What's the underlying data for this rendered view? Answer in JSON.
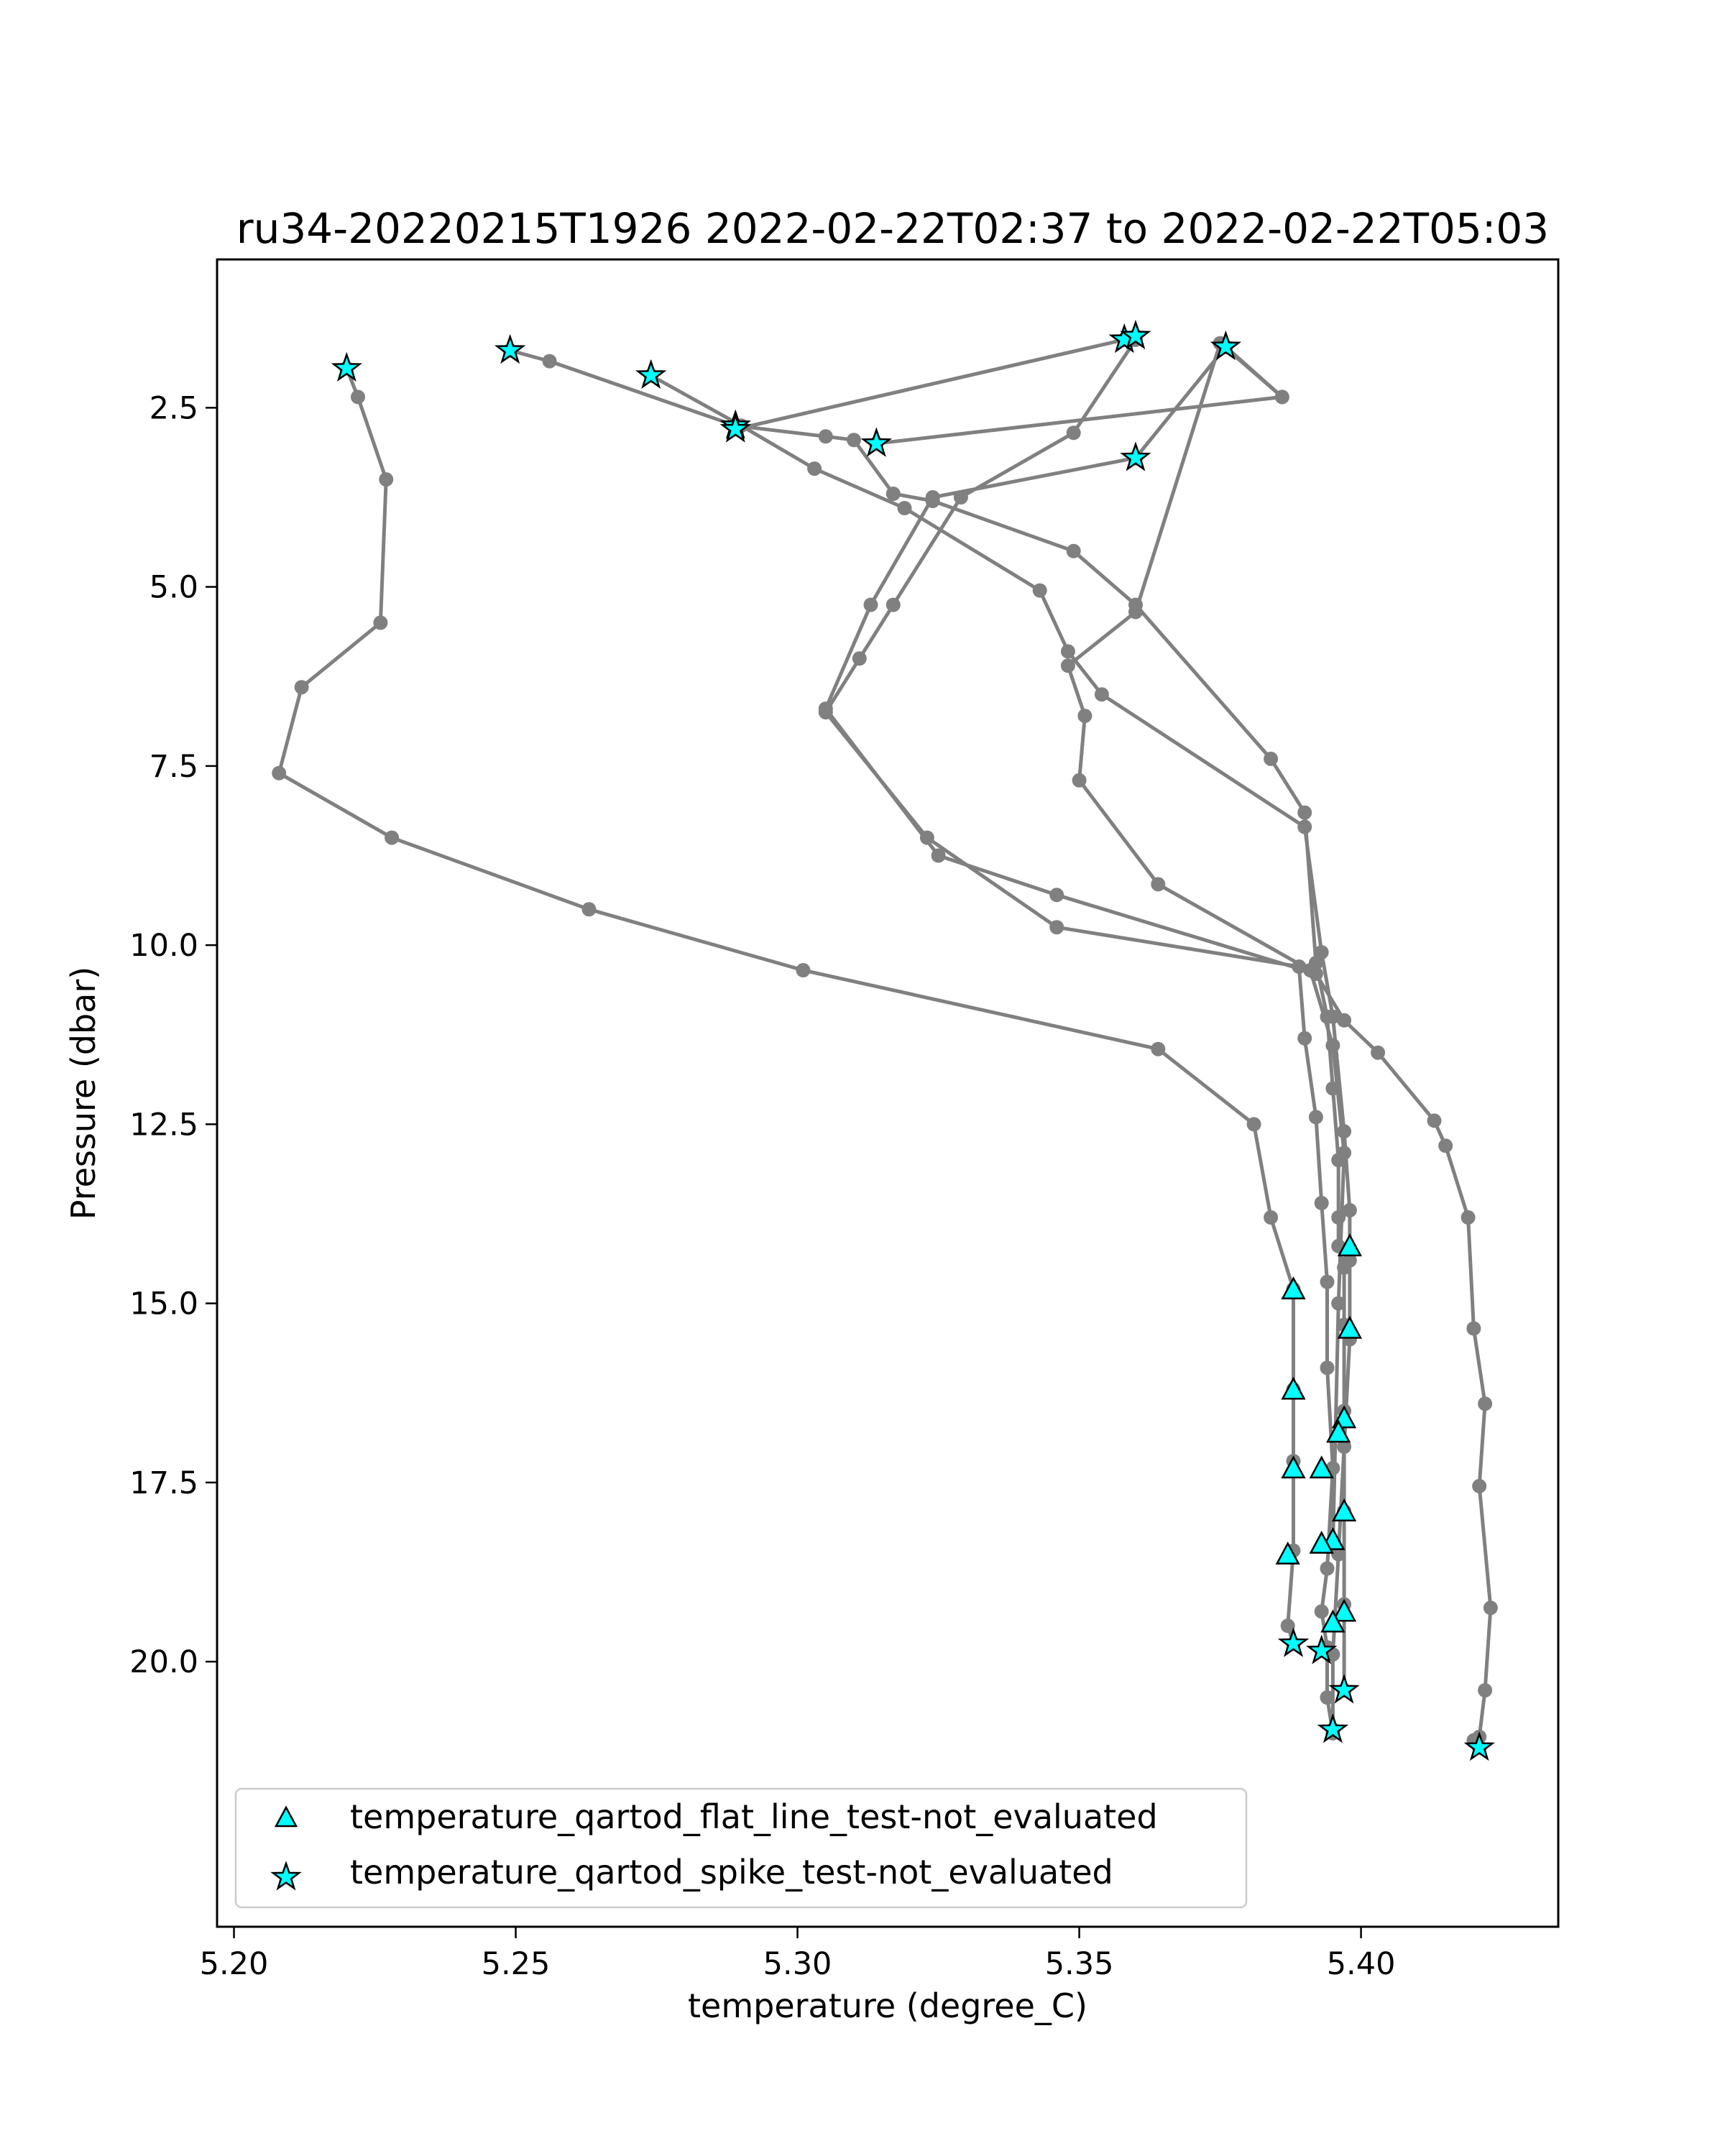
{
  "chart_data": {
    "type": "scatter",
    "title": "ru34-20220215T1926 2022-02-22T02:37 to 2022-02-22T05:03",
    "xlabel": "temperature (degree_C)",
    "ylabel": "Pressure (dbar)",
    "xlim": [
      5.197,
      5.435
    ],
    "ylim": [
      23.7,
      0.43
    ],
    "y_inverted": true,
    "grid": false,
    "xticks": [
      "5.20",
      "5.25",
      "5.30",
      "5.35",
      "5.40"
    ],
    "yticks": [
      "2.5",
      "5.0",
      "7.5",
      "10.0",
      "12.5",
      "15.0",
      "17.5",
      "20.0"
    ],
    "profile_color": "#808080",
    "marker_color": "#00ffff",
    "legend_position": "lower left",
    "series": [
      {
        "x": [
          5.22,
          5.222,
          5.227,
          5.226,
          5.212,
          5.208,
          5.228,
          5.263,
          5.301,
          5.364,
          5.381,
          5.384,
          5.388,
          5.388,
          5.388,
          5.388,
          5.387,
          5.388
        ],
        "y": [
          1.95,
          2.35,
          3.5,
          5.5,
          6.4,
          7.6,
          8.5,
          9.5,
          10.35,
          11.45,
          12.5,
          13.8,
          14.8,
          16.2,
          17.2,
          18.45,
          19.5,
          19.75
        ]
      },
      {
        "x": [
          5.249,
          5.256,
          5.289,
          5.305,
          5.31,
          5.317,
          5.324,
          5.349,
          5.36,
          5.384,
          5.39,
          5.392,
          5.394,
          5.395,
          5.396,
          5.396,
          5.396,
          5.397,
          5.397,
          5.397,
          5.397,
          5.397,
          5.397
        ],
        "y": [
          1.7,
          1.85,
          2.75,
          2.9,
          2.95,
          3.7,
          3.8,
          4.5,
          5.25,
          7.4,
          8.15,
          10.25,
          11.0,
          12.0,
          13.0,
          13.8,
          14.2,
          14.5,
          15.3,
          16.5,
          17.9,
          19.2,
          20.4
        ]
      },
      {
        "x": [
          5.274,
          5.29,
          5.303,
          5.319,
          5.343,
          5.348,
          5.354,
          5.39,
          5.393,
          5.395,
          5.397,
          5.398,
          5.398,
          5.398,
          5.397,
          5.396,
          5.395,
          5.395
        ],
        "y": [
          2.05,
          2.75,
          3.35,
          3.9,
          5.05,
          5.9,
          6.5,
          8.35,
          10.1,
          11.0,
          12.6,
          13.7,
          14.4,
          15.5,
          17.0,
          18.5,
          19.9,
          20.95
        ]
      },
      {
        "x": [
          5.289,
          5.358,
          5.358,
          5.36,
          5.36
        ],
        "y": [
          2.8,
          1.55,
          1.55,
          1.5,
          1.5
        ]
      },
      {
        "x": [
          5.314,
          5.386,
          5.376,
          5.36
        ],
        "y": [
          3.0,
          2.35,
          1.65,
          3.2
        ]
      },
      {
        "x": [
          5.36,
          5.349,
          5.329,
          5.317,
          5.311,
          5.305,
          5.323,
          5.346,
          5.389,
          5.39,
          5.392,
          5.393,
          5.394,
          5.394,
          5.395,
          5.394,
          5.393,
          5.394,
          5.394,
          5.395
        ],
        "y": [
          1.55,
          2.85,
          3.75,
          5.25,
          6.0,
          6.75,
          8.5,
          9.75,
          10.3,
          11.3,
          12.4,
          13.6,
          14.7,
          15.9,
          17.3,
          18.7,
          19.3,
          19.8,
          20.5,
          21.0
        ]
      },
      {
        "x": [
          5.376,
          5.386,
          5.375,
          5.36,
          5.348,
          5.351,
          5.35,
          5.364,
          5.391,
          5.395,
          5.397,
          5.396,
          5.395
        ],
        "y": [
          1.65,
          2.35,
          1.6,
          5.35,
          6.1,
          6.8,
          7.7,
          9.15,
          10.35,
          11.4,
          12.9,
          15.0,
          18.4
        ]
      },
      {
        "x": [
          5.36,
          5.324,
          5.313,
          5.305,
          5.325,
          5.346,
          5.392,
          5.397,
          5.403,
          5.413,
          5.415,
          5.419,
          5.42,
          5.422,
          5.421,
          5.423,
          5.422,
          5.421,
          5.42,
          5.421
        ],
        "y": [
          3.2,
          3.75,
          5.25,
          6.7,
          8.75,
          9.3,
          10.4,
          11.05,
          11.5,
          12.45,
          12.8,
          13.8,
          15.35,
          16.4,
          17.55,
          19.25,
          20.4,
          21.05,
          21.1,
          21.2
        ]
      }
    ],
    "flat_line_markers": {
      "legend": "temperature_qartod_flat_line_test-not_evaluated",
      "x": [
        5.398,
        5.388,
        5.398,
        5.388,
        5.397,
        5.396,
        5.388,
        5.393,
        5.397,
        5.395,
        5.393,
        5.387,
        5.397,
        5.395
      ],
      "y": [
        14.2,
        14.8,
        15.35,
        16.2,
        16.6,
        16.8,
        17.3,
        17.3,
        17.9,
        18.3,
        18.35,
        18.5,
        19.3,
        19.45
      ]
    },
    "spike_markers": {
      "legend": "temperature_qartod_spike_test-not_evaluated",
      "x": [
        5.22,
        5.249,
        5.274,
        5.289,
        5.289,
        5.314,
        5.358,
        5.36,
        5.376,
        5.36,
        5.388,
        5.393,
        5.397,
        5.395,
        5.421
      ],
      "y": [
        1.95,
        1.7,
        2.05,
        2.75,
        2.8,
        3.0,
        1.55,
        1.5,
        1.65,
        3.2,
        19.75,
        19.85,
        20.4,
        20.95,
        21.2
      ]
    }
  }
}
